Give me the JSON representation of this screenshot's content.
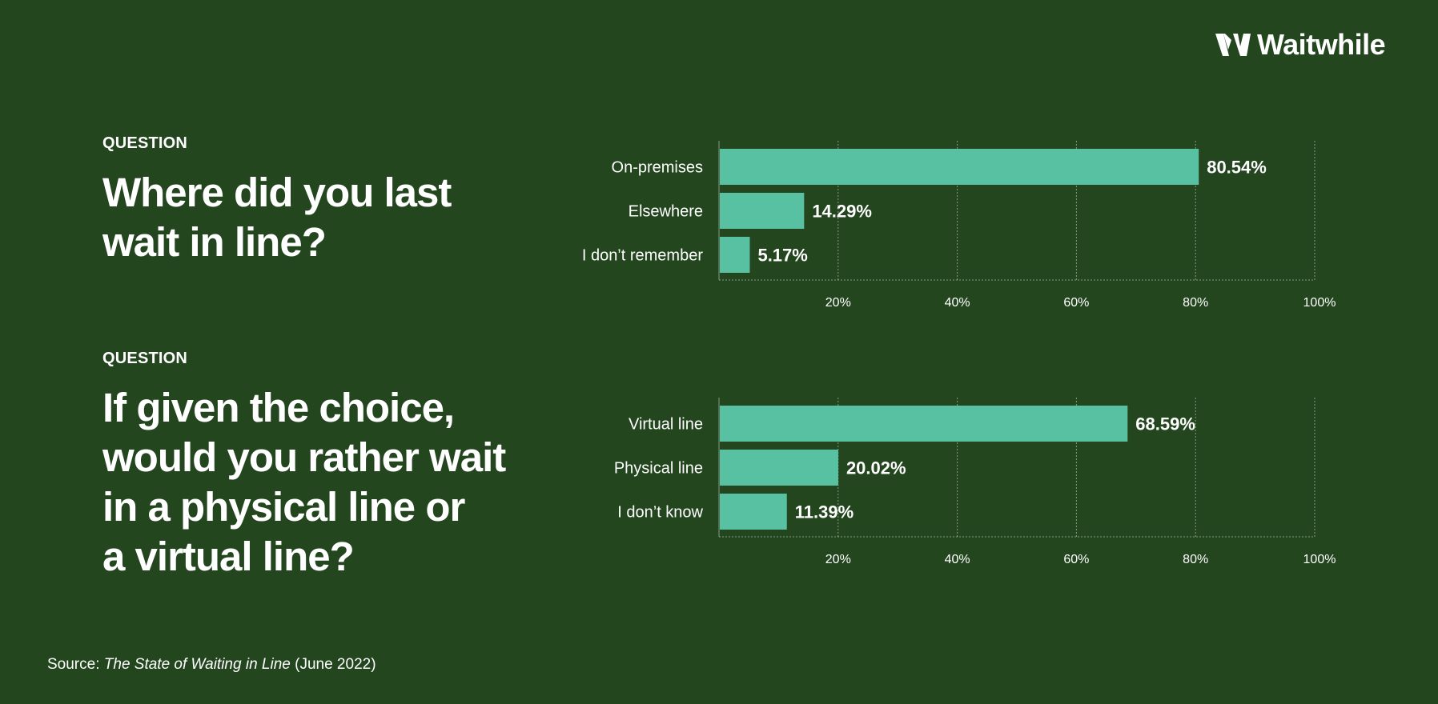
{
  "brand": {
    "logo_icon": "waitwhile-w-icon",
    "name": "Waitwhile",
    "bar_color": "#57c1a1",
    "bg_color": "#23461f"
  },
  "questions": [
    {
      "label": "QUESTION",
      "title": "Where did you last\nwait in line?"
    },
    {
      "label": "QUESTION",
      "title": "If given the choice,\nwould you rather wait\nin a physical line or\na virtual line?"
    }
  ],
  "chart_data": [
    {
      "type": "bar",
      "orientation": "horizontal",
      "categories": [
        "On-premises",
        "Elsewhere",
        "I don’t remember"
      ],
      "values": [
        80.54,
        14.29,
        5.17
      ],
      "value_labels": [
        "80.54%",
        "14.29%",
        "5.17%"
      ],
      "xlim": [
        0,
        100
      ],
      "xticks": [
        20,
        40,
        60,
        80,
        100
      ],
      "xtick_labels": [
        "20%",
        "40%",
        "60%",
        "80%",
        "100%"
      ],
      "grid": true
    },
    {
      "type": "bar",
      "orientation": "horizontal",
      "categories": [
        "Virtual line",
        "Physical line",
        "I don’t know"
      ],
      "values": [
        68.59,
        20.02,
        11.39
      ],
      "value_labels": [
        "68.59%",
        "20.02%",
        "11.39%"
      ],
      "xlim": [
        0,
        100
      ],
      "xticks": [
        20,
        40,
        60,
        80,
        100
      ],
      "xtick_labels": [
        "20%",
        "40%",
        "60%",
        "80%",
        "100%"
      ],
      "grid": true
    }
  ],
  "source": {
    "prefix": "Source: ",
    "title": "The State of Waiting in Line",
    "suffix": " (June 2022)"
  }
}
